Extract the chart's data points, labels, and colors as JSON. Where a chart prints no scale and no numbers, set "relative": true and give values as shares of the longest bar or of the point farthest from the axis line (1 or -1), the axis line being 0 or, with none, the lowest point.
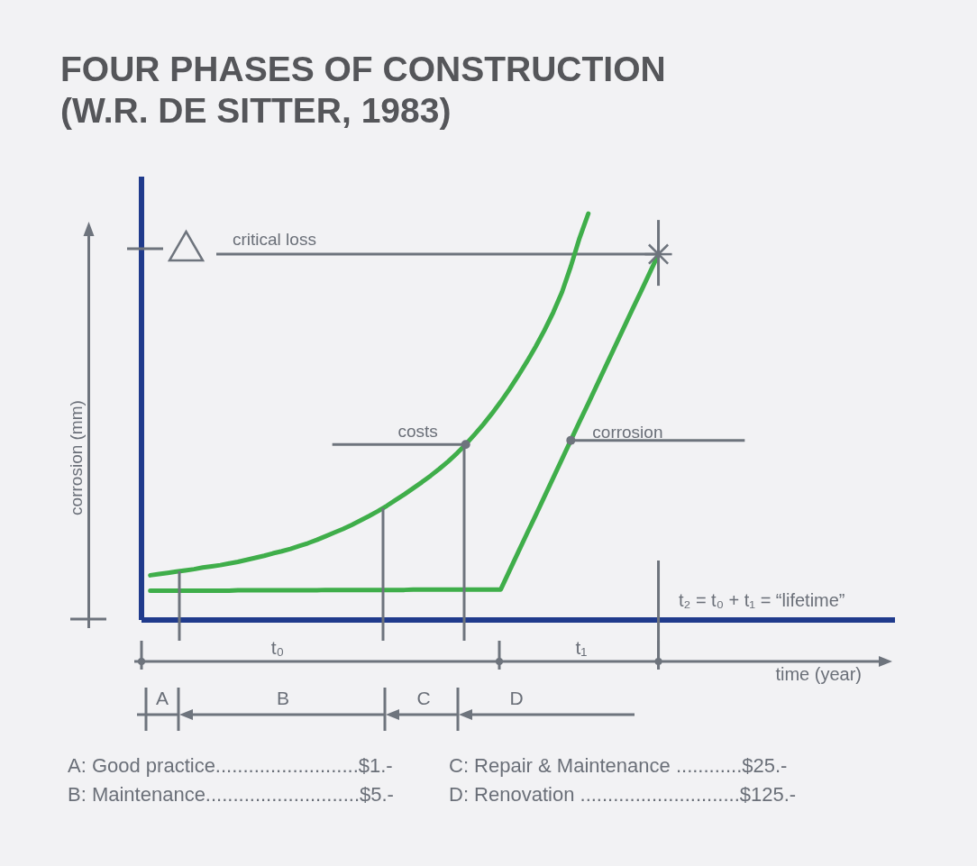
{
  "chart_data": {
    "type": "line",
    "title": "FOUR PHASES OF CONSTRUCTION (W.R. DE SITTER, 1983)",
    "xlabel": "time (year)",
    "ylabel": "corrosion (mm)",
    "relative": true,
    "marker": "none",
    "categories": [
      null,
      null,
      null,
      null,
      null,
      null,
      null,
      null,
      null,
      null,
      null,
      null,
      null,
      null,
      null,
      null,
      null,
      null,
      null,
      null,
      null,
      null,
      null,
      null,
      null,
      null,
      null,
      null,
      null,
      null,
      null,
      null,
      null,
      null,
      null,
      null,
      null,
      null,
      null,
      null,
      null,
      null,
      null,
      null,
      null,
      null,
      null,
      null,
      null,
      null,
      null,
      null,
      null,
      null,
      null,
      null,
      null,
      null,
      null,
      null,
      null,
      null,
      null,
      null,
      null,
      null,
      null,
      null,
      null,
      null,
      null,
      null,
      null,
      null,
      null,
      null,
      null,
      null,
      null,
      null,
      null,
      null,
      null,
      null,
      null,
      null
    ],
    "series": [
      {
        "name": "costs",
        "color": "#3fae4a",
        "values": [
          0.11,
          0.113,
          0.116,
          0.119,
          0.122,
          0.125,
          0.129,
          0.132,
          0.135,
          0.139,
          0.143,
          0.148,
          0.153,
          0.158,
          0.164,
          0.169,
          0.175,
          0.182,
          0.189,
          0.197,
          0.206,
          0.215,
          0.224,
          0.234,
          0.245,
          0.256,
          0.268,
          0.281,
          0.295,
          0.309,
          0.324,
          0.339,
          0.355,
          0.372,
          0.39,
          0.41,
          0.432,
          0.456,
          0.481,
          0.508,
          0.537,
          0.568,
          0.601,
          0.636,
          0.673,
          0.713,
          0.757,
          0.807,
          0.87,
          0.94,
          1.0,
          null,
          null,
          null,
          null,
          null,
          null,
          null,
          null,
          null,
          null,
          null,
          null,
          null,
          null,
          null,
          null,
          null,
          null,
          null,
          null,
          null,
          null,
          null,
          null,
          null,
          null,
          null,
          null,
          null,
          null,
          null,
          null,
          null,
          null,
          null
        ]
      },
      {
        "name": "corrosion",
        "color": "#3fae4a",
        "values": [
          0.072,
          0.072,
          0.072,
          0.072,
          0.072,
          0.072,
          0.072,
          0.072,
          0.072,
          0.072,
          0.073,
          0.073,
          0.073,
          0.073,
          0.073,
          0.073,
          0.073,
          0.073,
          0.073,
          0.073,
          0.074,
          0.074,
          0.074,
          0.074,
          0.074,
          0.074,
          0.074,
          0.074,
          0.074,
          0.074,
          0.075,
          0.075,
          0.075,
          0.075,
          0.075,
          0.075,
          0.075,
          0.075,
          0.075,
          0.075,
          0.075,
          0.121,
          0.167,
          0.213,
          0.258,
          0.304,
          0.35,
          0.396,
          0.442,
          0.488,
          0.533,
          0.579,
          0.625,
          0.671,
          0.717,
          0.763,
          0.808,
          0.854,
          0.9,
          null,
          null,
          null,
          null,
          null,
          null,
          null,
          null,
          null,
          null,
          null,
          null,
          null,
          null,
          null,
          null,
          null,
          null,
          null,
          null,
          null,
          null,
          null,
          null,
          null,
          null,
          null
        ]
      }
    ],
    "ref_lines": [
      {
        "axis": "y",
        "value": 0.9,
        "label": "critical loss",
        "color": "#6e747d"
      }
    ],
    "annotations": [
      "t₂ = t₀ + t₁ = “lifetime”",
      "t₀",
      "t₁",
      "A",
      "B",
      "C",
      "D",
      "A: Good practice..........................$1.-",
      "B: Maintenance............................$5.-",
      "C: Repair & Maintenance ............$25.-",
      "D: Renovation .............................$125.-"
    ]
  }
}
